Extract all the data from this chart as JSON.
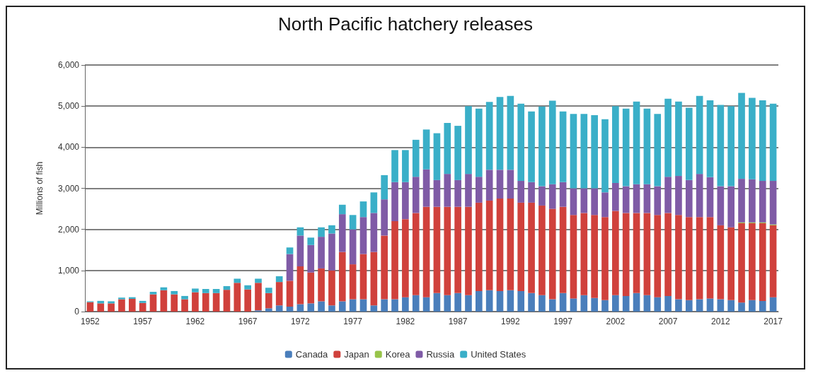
{
  "chart_data": {
    "type": "bar",
    "title": "North Pacific hatchery releases",
    "ylabel": "Millions of fish",
    "stacked": true,
    "categories": [
      "1952",
      null,
      null,
      null,
      null,
      "1957",
      null,
      null,
      null,
      null,
      "1962",
      null,
      null,
      null,
      null,
      "1967",
      null,
      null,
      null,
      null,
      "1972",
      null,
      null,
      null,
      null,
      "1977",
      null,
      null,
      null,
      null,
      "1982",
      null,
      null,
      null,
      null,
      "1987",
      null,
      null,
      null,
      null,
      "1992",
      null,
      null,
      null,
      null,
      "1997",
      null,
      null,
      null,
      null,
      "2002",
      null,
      null,
      null,
      null,
      "2007",
      null,
      null,
      null,
      null,
      "2012",
      null,
      null,
      null,
      null,
      "2017"
    ],
    "series": [
      {
        "name": "Canada",
        "color": "#4a7ebb",
        "values": [
          0,
          0,
          0,
          0,
          0,
          0,
          0,
          0,
          0,
          0,
          0,
          0,
          0,
          0,
          0,
          0,
          30,
          80,
          150,
          120,
          180,
          200,
          250,
          150,
          250,
          300,
          300,
          150,
          300,
          300,
          350,
          400,
          350,
          450,
          400,
          450,
          400,
          500,
          520,
          500,
          520,
          500,
          450,
          400,
          300,
          450,
          320,
          400,
          330,
          280,
          400,
          380,
          450,
          400,
          350,
          380,
          300,
          280,
          300,
          320,
          300,
          280,
          220,
          280,
          260,
          350
        ]
      },
      {
        "name": "Japan",
        "color": "#d0413c",
        "values": [
          230,
          200,
          200,
          300,
          310,
          210,
          420,
          520,
          420,
          300,
          470,
          450,
          450,
          530,
          700,
          540,
          670,
          370,
          570,
          630,
          920,
          750,
          800,
          850,
          1200,
          850,
          1100,
          1300,
          1550,
          1900,
          1900,
          2000,
          2200,
          2100,
          2150,
          2100,
          2150,
          2150,
          2180,
          2250,
          2230,
          2150,
          2200,
          2180,
          2200,
          2100,
          2030,
          2000,
          2020,
          2020,
          2050,
          2020,
          1950,
          2000,
          2000,
          2020,
          2050,
          2020,
          2000,
          1980,
          1800,
          1770,
          1930,
          1870,
          1890,
          1750
        ]
      },
      {
        "name": "Korea",
        "color": "#98c44a",
        "values": [
          0,
          0,
          0,
          0,
          0,
          0,
          0,
          0,
          0,
          0,
          0,
          0,
          0,
          0,
          0,
          0,
          0,
          0,
          0,
          0,
          0,
          0,
          0,
          0,
          0,
          0,
          0,
          0,
          0,
          0,
          0,
          0,
          0,
          0,
          0,
          0,
          0,
          0,
          0,
          0,
          0,
          0,
          0,
          0,
          0,
          0,
          0,
          0,
          0,
          0,
          0,
          0,
          0,
          0,
          0,
          0,
          0,
          0,
          0,
          0,
          0,
          0,
          20,
          20,
          20,
          20
        ]
      },
      {
        "name": "Russia",
        "color": "#7f5ba6",
        "values": [
          0,
          0,
          0,
          0,
          0,
          0,
          0,
          0,
          0,
          0,
          0,
          0,
          0,
          0,
          0,
          0,
          0,
          0,
          0,
          650,
          750,
          670,
          770,
          900,
          920,
          850,
          900,
          950,
          880,
          950,
          900,
          880,
          910,
          650,
          800,
          650,
          800,
          630,
          750,
          700,
          700,
          530,
          500,
          470,
          600,
          600,
          650,
          600,
          650,
          600,
          680,
          650,
          700,
          700,
          700,
          880,
          950,
          900,
          1050,
          970,
          950,
          1000,
          1060,
          1050,
          1010,
          1060
        ]
      },
      {
        "name": "United States",
        "color": "#3aafc8",
        "values": [
          20,
          60,
          50,
          40,
          40,
          50,
          60,
          70,
          80,
          80,
          90,
          100,
          100,
          90,
          100,
          100,
          100,
          130,
          140,
          160,
          200,
          180,
          230,
          200,
          230,
          350,
          380,
          500,
          590,
          780,
          780,
          900,
          970,
          1140,
          1240,
          1320,
          1650,
          1660,
          1650,
          1770,
          1800,
          1880,
          1720,
          1940,
          2030,
          1720,
          1810,
          1810,
          1780,
          1780,
          1870,
          1890,
          2010,
          1840,
          1760,
          1900,
          1810,
          1760,
          1900,
          1870,
          1980,
          1950,
          2090,
          1980,
          1960,
          1880
        ]
      }
    ],
    "ylim": [
      0,
      6000
    ],
    "yticks": [
      0,
      {
        "value": 1000,
        "label": "1,000"
      },
      {
        "value": 2000,
        "label": "2,000"
      },
      {
        "value": 3000,
        "label": "3,000"
      },
      {
        "value": 4000,
        "label": "4,000"
      },
      {
        "value": 5000,
        "label": "5,000"
      },
      {
        "value": 6000,
        "label": "6,000"
      }
    ],
    "grid": "y",
    "legend": "bottom"
  }
}
